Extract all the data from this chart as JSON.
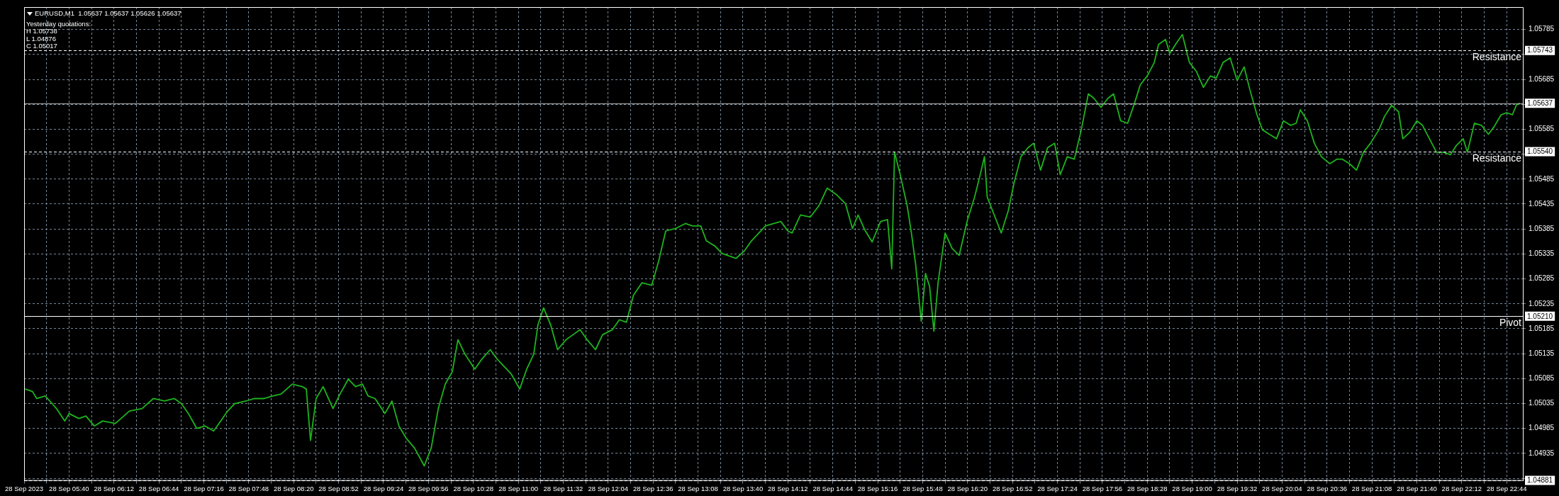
{
  "chart_data": {
    "type": "line",
    "title": "EURUSD,M1  1.05637 1.05637 1.05626 1.05637",
    "annotations": [
      "Yesterday quotations:",
      "H 1.05738",
      "L 1.04876",
      "C 1.05017",
      {
        "text": "1.05743",
        "y": 1.05743
      },
      {
        "text": "1.05637",
        "y": 1.05637
      },
      {
        "text": "1.05540",
        "y": 1.0554
      },
      {
        "text": "1.05210",
        "y": 1.0521
      },
      {
        "text": "1.04881",
        "y": 1.04881
      }
    ],
    "x": [
      "2023-09-28T05:09",
      "2023-09-28T05:14",
      "2023-09-28T05:17",
      "2023-09-28T05:23",
      "2023-09-28T05:28",
      "2023-09-28T05:31",
      "2023-09-28T05:37",
      "2023-09-28T05:40",
      "2023-09-28T05:47",
      "2023-09-28T05:52",
      "2023-09-28T05:58",
      "2023-09-28T06:04",
      "2023-09-28T06:13",
      "2023-09-28T06:19",
      "2023-09-28T06:23",
      "2023-09-28T06:32",
      "2023-09-28T06:40",
      "2023-09-28T06:48",
      "2023-09-28T06:55",
      "2023-09-28T07:00",
      "2023-09-28T07:05",
      "2023-09-28T07:11",
      "2023-09-28T07:17",
      "2023-09-28T07:23",
      "2023-09-28T07:28",
      "2023-09-28T07:33",
      "2023-09-28T07:38",
      "2023-09-28T07:46",
      "2023-09-28T07:52",
      "2023-09-28T07:59",
      "2023-09-28T08:05",
      "2023-09-28T08:11",
      "2023-09-28T08:19",
      "2023-09-28T08:26",
      "2023-09-28T08:29",
      "2023-09-28T08:32",
      "2023-09-28T08:36",
      "2023-09-28T08:41",
      "2023-09-28T08:48",
      "2023-09-28T08:53",
      "2023-09-28T08:59",
      "2023-09-28T09:04",
      "2023-09-28T09:09",
      "2023-09-28T09:13",
      "2023-09-28T09:18",
      "2023-09-28T09:25",
      "2023-09-28T09:30",
      "2023-09-28T09:35",
      "2023-09-28T09:40",
      "2023-09-28T09:46",
      "2023-09-28T09:49",
      "2023-09-28T09:53",
      "2023-09-28T09:58",
      "2023-09-28T10:03",
      "2023-09-28T10:08",
      "2023-09-28T10:13",
      "2023-09-28T10:17",
      "2023-09-28T10:22",
      "2023-09-28T10:29",
      "2023-09-28T10:34",
      "2023-09-28T10:40",
      "2023-09-28T10:45",
      "2023-09-28T10:50",
      "2023-09-28T10:55",
      "2023-09-28T11:01",
      "2023-09-28T11:06",
      "2023-09-28T11:11",
      "2023-09-28T11:14",
      "2023-09-28T11:18",
      "2023-09-28T11:23",
      "2023-09-28T11:28",
      "2023-09-28T11:34",
      "2023-09-28T11:39",
      "2023-09-28T11:44",
      "2023-09-28T11:49",
      "2023-09-28T11:55",
      "2023-09-28T12:00",
      "2023-09-28T12:07",
      "2023-09-28T12:12",
      "2023-09-28T12:17",
      "2023-09-28T12:22",
      "2023-09-28T12:28",
      "2023-09-28T12:35",
      "2023-09-28T12:40",
      "2023-09-28T12:45",
      "2023-09-28T12:52",
      "2023-09-28T12:59",
      "2023-09-28T13:04",
      "2023-09-28T13:10",
      "2023-09-28T13:14",
      "2023-09-28T13:20",
      "2023-09-28T13:25",
      "2023-09-28T13:30",
      "2023-09-28T13:35",
      "2023-09-28T13:41",
      "2023-09-28T13:46",
      "2023-09-28T13:51",
      "2023-09-28T13:56",
      "2023-09-28T14:02",
      "2023-09-28T14:07",
      "2023-09-28T14:12",
      "2023-09-28T14:15",
      "2023-09-28T14:21",
      "2023-09-28T14:28",
      "2023-09-28T14:34",
      "2023-09-28T14:40",
      "2023-09-28T14:47",
      "2023-09-28T14:53",
      "2023-09-28T14:58",
      "2023-09-28T15:02",
      "2023-09-28T15:07",
      "2023-09-28T15:12",
      "2023-09-28T15:18",
      "2023-09-28T15:23",
      "2023-09-28T15:26",
      "2023-09-28T15:28",
      "2023-09-28T15:32",
      "2023-09-28T15:37",
      "2023-09-28T15:40",
      "2023-09-28T15:43",
      "2023-09-28T15:47",
      "2023-09-28T15:50",
      "2023-09-28T15:53",
      "2023-09-28T15:56",
      "2023-09-28T15:59",
      "2023-09-28T16:04",
      "2023-09-28T16:09",
      "2023-09-28T16:14",
      "2023-09-28T16:20",
      "2023-09-28T16:25",
      "2023-09-28T16:29",
      "2023-09-28T16:32",
      "2023-09-28T16:34",
      "2023-09-28T16:39",
      "2023-09-28T16:44",
      "2023-09-28T16:49",
      "2023-09-28T16:53",
      "2023-09-28T16:58",
      "2023-09-28T17:03",
      "2023-09-28T17:07",
      "2023-09-28T17:12",
      "2023-09-28T17:17",
      "2023-09-28T17:22",
      "2023-09-28T17:26",
      "2023-09-28T17:31",
      "2023-09-28T17:36",
      "2023-09-28T17:41",
      "2023-09-28T17:46",
      "2023-09-28T17:50",
      "2023-09-28T17:55",
      "2023-09-28T18:00",
      "2023-09-28T18:04",
      "2023-09-28T18:09",
      "2023-09-28T18:14",
      "2023-09-28T18:19",
      "2023-09-28T18:23",
      "2023-09-28T18:28",
      "2023-09-28T18:33",
      "2023-09-28T18:36",
      "2023-09-28T18:41",
      "2023-09-28T18:44",
      "2023-09-28T18:49",
      "2023-09-28T18:53",
      "2023-09-28T18:58",
      "2023-09-28T19:03",
      "2023-09-28T19:08",
      "2023-09-28T19:13",
      "2023-09-28T19:17",
      "2023-09-28T19:22",
      "2023-09-28T19:27",
      "2023-09-28T19:32",
      "2023-09-28T19:37",
      "2023-09-28T19:41",
      "2023-09-28T19:46",
      "2023-09-28T19:50",
      "2023-09-28T19:55",
      "2023-09-28T20:00",
      "2023-09-28T20:05",
      "2023-09-28T20:10",
      "2023-09-28T20:14",
      "2023-09-28T20:17",
      "2023-09-28T20:22",
      "2023-09-28T20:27",
      "2023-09-28T20:32",
      "2023-09-28T20:38",
      "2023-09-28T20:43",
      "2023-09-28T20:47",
      "2023-09-28T20:52",
      "2023-09-28T20:57",
      "2023-09-28T21:02",
      "2023-09-28T21:07",
      "2023-09-28T21:13",
      "2023-09-28T21:17",
      "2023-09-28T21:22",
      "2023-09-28T21:27",
      "2023-09-28T21:30",
      "2023-09-28T21:35",
      "2023-09-28T21:40",
      "2023-09-28T21:44",
      "2023-09-28T21:49",
      "2023-09-28T21:54",
      "2023-09-28T21:59",
      "2023-09-28T22:04",
      "2023-09-28T22:08",
      "2023-09-28T22:13",
      "2023-09-28T22:16",
      "2023-09-28T22:21",
      "2023-09-28T22:26",
      "2023-09-28T22:31",
      "2023-09-28T22:35",
      "2023-09-28T22:40",
      "2023-09-28T22:44",
      "2023-09-28T22:48",
      "2023-09-28T22:51",
      "2023-09-28T22:53"
    ],
    "series": [
      {
        "color": "#1db31d",
        "values": [
          1.05064,
          1.05059,
          1.05045,
          1.0505,
          1.05035,
          1.05025,
          1.05,
          1.05015,
          1.05005,
          1.0501,
          1.0499,
          1.05,
          1.04995,
          1.0501,
          1.0502,
          1.05025,
          1.05045,
          1.0504,
          1.05045,
          1.05035,
          1.05015,
          1.04985,
          1.0499,
          1.0498,
          1.05,
          1.0502,
          1.05035,
          1.0504,
          1.05045,
          1.05045,
          1.0505,
          1.05054,
          1.05074,
          1.05069,
          1.05064,
          1.04961,
          1.05045,
          1.05069,
          1.05025,
          1.05054,
          1.05084,
          1.05069,
          1.05074,
          1.0505,
          1.05045,
          1.05015,
          1.0504,
          1.0499,
          1.04966,
          1.04946,
          1.04931,
          1.0491,
          1.04946,
          1.05025,
          1.05074,
          1.05099,
          1.05163,
          1.05134,
          1.05104,
          1.05124,
          1.05143,
          1.05124,
          1.05109,
          1.05094,
          1.05064,
          1.05104,
          1.05134,
          1.05193,
          1.05227,
          1.05193,
          1.05143,
          1.05163,
          1.05173,
          1.05183,
          1.05163,
          1.05143,
          1.05173,
          1.05183,
          1.05203,
          1.05198,
          1.05252,
          1.05277,
          1.05272,
          1.05321,
          1.05381,
          1.05386,
          1.05396,
          1.05391,
          1.05391,
          1.05361,
          1.05351,
          1.05336,
          1.05331,
          1.05326,
          1.05341,
          1.05361,
          1.05376,
          1.05391,
          1.05396,
          1.054,
          1.05381,
          1.05377,
          1.05413,
          1.05409,
          1.05431,
          1.05467,
          1.05453,
          1.05436,
          1.05386,
          1.05413,
          1.05382,
          1.05359,
          1.054,
          1.05404,
          1.05305,
          1.05539,
          1.05494,
          1.05431,
          1.05377,
          1.05314,
          1.052,
          1.05296,
          1.05269,
          1.0518,
          1.05278,
          1.05377,
          1.05346,
          1.05332,
          1.05404,
          1.05449,
          1.05494,
          1.0553,
          1.05449,
          1.05413,
          1.05377,
          1.05422,
          1.05476,
          1.0553,
          1.05548,
          1.05557,
          1.05503,
          1.05548,
          1.05557,
          1.05494,
          1.0553,
          1.05525,
          1.05584,
          1.05656,
          1.05647,
          1.05629,
          1.05647,
          1.05656,
          1.05602,
          1.05597,
          1.05638,
          1.05674,
          1.05692,
          1.05719,
          1.05755,
          1.05765,
          1.05737,
          1.05759,
          1.05775,
          1.05719,
          1.05701,
          1.05669,
          1.05692,
          1.05687,
          1.05719,
          1.05728,
          1.05683,
          1.0571,
          1.05665,
          1.05615,
          1.05584,
          1.05575,
          1.05566,
          1.05602,
          1.05593,
          1.05597,
          1.05624,
          1.05602,
          1.05557,
          1.0553,
          1.05516,
          1.05525,
          1.05525,
          1.05516,
          1.05503,
          1.05539,
          1.05557,
          1.05584,
          1.05611,
          1.05633,
          1.0562,
          1.05566,
          1.05579,
          1.05602,
          1.05593,
          1.05566,
          1.05539,
          1.05539,
          1.05534,
          1.05552,
          1.05566,
          1.05539,
          1.05597,
          1.05593,
          1.05575,
          1.0559,
          1.05614,
          1.05618,
          1.05614,
          1.05634,
          1.05637
        ]
      }
    ],
    "xlim": [
      "2023-09-28T05:08",
      "2023-09-28T22:56"
    ],
    "xticks": [
      {
        "value": "2023-09-28T05:08",
        "label": "28 Sep 2023"
      },
      {
        "value": "2023-09-28T05:24",
        "label": null
      },
      {
        "value": "2023-09-28T05:40",
        "label": "28 Sep 05:40"
      },
      {
        "value": "2023-09-28T05:56",
        "label": null
      },
      {
        "value": "2023-09-28T06:12",
        "label": "28 Sep 06:12"
      },
      {
        "value": "2023-09-28T06:28",
        "label": null
      },
      {
        "value": "2023-09-28T06:44",
        "label": "28 Sep 06:44"
      },
      {
        "value": "2023-09-28T07:00",
        "label": null
      },
      {
        "value": "2023-09-28T07:16",
        "label": "28 Sep 07:16"
      },
      {
        "value": "2023-09-28T07:32",
        "label": null
      },
      {
        "value": "2023-09-28T07:48",
        "label": "28 Sep 07:48"
      },
      {
        "value": "2023-09-28T08:04",
        "label": null
      },
      {
        "value": "2023-09-28T08:20",
        "label": "28 Sep 08:20"
      },
      {
        "value": "2023-09-28T08:36",
        "label": null
      },
      {
        "value": "2023-09-28T08:52",
        "label": "28 Sep 08:52"
      },
      {
        "value": "2023-09-28T09:08",
        "label": null
      },
      {
        "value": "2023-09-28T09:24",
        "label": "28 Sep 09:24"
      },
      {
        "value": "2023-09-28T09:40",
        "label": null
      },
      {
        "value": "2023-09-28T09:56",
        "label": "28 Sep 09:56"
      },
      {
        "value": "2023-09-28T10:12",
        "label": null
      },
      {
        "value": "2023-09-28T10:28",
        "label": "28 Sep 10:28"
      },
      {
        "value": "2023-09-28T10:44",
        "label": null
      },
      {
        "value": "2023-09-28T11:00",
        "label": "28 Sep 11:00"
      },
      {
        "value": "2023-09-28T11:16",
        "label": null
      },
      {
        "value": "2023-09-28T11:32",
        "label": "28 Sep 11:32"
      },
      {
        "value": "2023-09-28T11:48",
        "label": null
      },
      {
        "value": "2023-09-28T12:04",
        "label": "28 Sep 12:04"
      },
      {
        "value": "2023-09-28T12:20",
        "label": null
      },
      {
        "value": "2023-09-28T12:36",
        "label": "28 Sep 12:36"
      },
      {
        "value": "2023-09-28T12:52",
        "label": null
      },
      {
        "value": "2023-09-28T13:08",
        "label": "28 Sep 13:08"
      },
      {
        "value": "2023-09-28T13:24",
        "label": null
      },
      {
        "value": "2023-09-28T13:40",
        "label": "28 Sep 13:40"
      },
      {
        "value": "2023-09-28T13:56",
        "label": null
      },
      {
        "value": "2023-09-28T14:12",
        "label": "28 Sep 14:12"
      },
      {
        "value": "2023-09-28T14:28",
        "label": null
      },
      {
        "value": "2023-09-28T14:44",
        "label": "28 Sep 14:44"
      },
      {
        "value": "2023-09-28T15:00",
        "label": null
      },
      {
        "value": "2023-09-28T15:16",
        "label": "28 Sep 15:16"
      },
      {
        "value": "2023-09-28T15:32",
        "label": null
      },
      {
        "value": "2023-09-28T15:48",
        "label": "28 Sep 15:48"
      },
      {
        "value": "2023-09-28T16:04",
        "label": null
      },
      {
        "value": "2023-09-28T16:20",
        "label": "28 Sep 16:20"
      },
      {
        "value": "2023-09-28T16:36",
        "label": null
      },
      {
        "value": "2023-09-28T16:52",
        "label": "28 Sep 16:52"
      },
      {
        "value": "2023-09-28T17:08",
        "label": null
      },
      {
        "value": "2023-09-28T17:24",
        "label": "28 Sep 17:24"
      },
      {
        "value": "2023-09-28T17:40",
        "label": null
      },
      {
        "value": "2023-09-28T17:56",
        "label": "28 Sep 17:56"
      },
      {
        "value": "2023-09-28T18:12",
        "label": null
      },
      {
        "value": "2023-09-28T18:28",
        "label": "28 Sep 18:28"
      },
      {
        "value": "2023-09-28T18:44",
        "label": null
      },
      {
        "value": "2023-09-28T19:00",
        "label": "28 Sep 19:00"
      },
      {
        "value": "2023-09-28T19:16",
        "label": null
      },
      {
        "value": "2023-09-28T19:32",
        "label": "28 Sep 19:32"
      },
      {
        "value": "2023-09-28T19:48",
        "label": null
      },
      {
        "value": "2023-09-28T20:04",
        "label": "28 Sep 20:04"
      },
      {
        "value": "2023-09-28T20:20",
        "label": null
      },
      {
        "value": "2023-09-28T20:36",
        "label": "28 Sep 20:36"
      },
      {
        "value": "2023-09-28T20:52",
        "label": null
      },
      {
        "value": "2023-09-28T21:08",
        "label": "28 Sep 21:08"
      },
      {
        "value": "2023-09-28T21:24",
        "label": null
      },
      {
        "value": "2023-09-28T21:40",
        "label": "28 Sep 21:40"
      },
      {
        "value": "2023-09-28T21:56",
        "label": null
      },
      {
        "value": "2023-09-28T22:12",
        "label": "28 Sep 22:12"
      },
      {
        "value": "2023-09-28T22:28",
        "label": null
      },
      {
        "value": "2023-09-28T22:44",
        "label": "28 Sep 22:44"
      }
    ],
    "ylim": [
      1.0488,
      1.0583
    ],
    "yticks": [
      {
        "value": 1.04885,
        "label": null
      },
      1.04935,
      1.04985,
      1.05035,
      1.05085,
      1.05135,
      1.05185,
      1.05235,
      1.05285,
      1.05335,
      1.05385,
      1.05435,
      1.05485,
      {
        "value": 1.05535,
        "label": null
      },
      1.05585,
      {
        "value": 1.05635,
        "label": null
      },
      1.05685,
      {
        "value": 1.05735,
        "label": null
      },
      1.05785
    ],
    "grid": true,
    "ref_lines": [
      {
        "axis": "y",
        "value": 1.05743,
        "label": "Resistance",
        "color": "#ffffff",
        "line_style": "dashed"
      },
      {
        "axis": "y",
        "value": 1.05637,
        "color": "#b4b4b4",
        "line_style": "solid"
      },
      {
        "axis": "y",
        "value": 1.0554,
        "label": "Resistance",
        "color": "#ffffff",
        "line_style": "dashed"
      },
      {
        "axis": "y",
        "value": 1.0521,
        "label": "Pivot",
        "color": "#ffffff",
        "line_style": "solid"
      },
      {
        "axis": "y",
        "value": 1.04881,
        "color": "#ffffff",
        "line_style": "dashed"
      }
    ]
  }
}
